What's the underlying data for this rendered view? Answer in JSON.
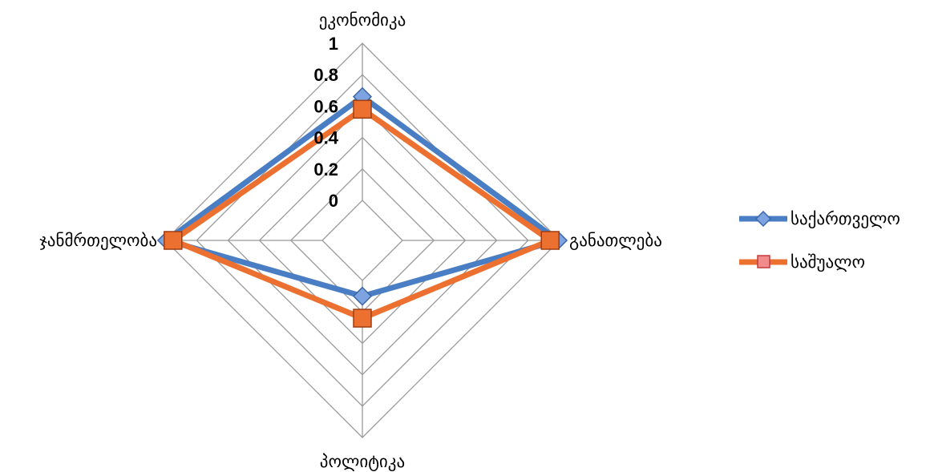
{
  "chart_data": {
    "type": "radar",
    "axes": [
      "ეკონომიკა",
      "განათლება",
      "პოლიტიკა",
      "ჯანმრთელობა"
    ],
    "r_ticks": [
      "0",
      "0.2",
      "0.4",
      "0.6",
      "0.8",
      "1"
    ],
    "r_range": [
      0,
      1
    ],
    "grid": true,
    "legend_position": "right",
    "series": [
      {
        "name": "საქართველო",
        "values": [
          0.66,
          0.99,
          0.1,
          0.99
        ],
        "color": "#4A7EC4",
        "marker": "diamond"
      },
      {
        "name": "საშუალო",
        "values": [
          0.58,
          0.94,
          0.24,
          0.95
        ],
        "color": "#EC7030",
        "marker": "square"
      }
    ]
  }
}
